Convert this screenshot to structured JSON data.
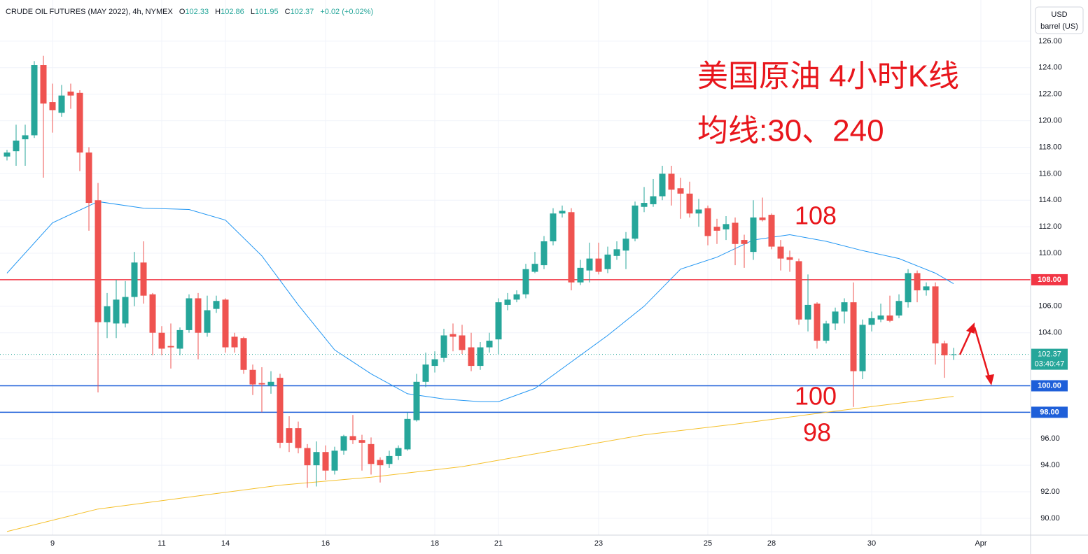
{
  "header": {
    "title": "CRUDE OIL FUTURES (MAY 2022), 4h, NYMEX",
    "ohlc": [
      {
        "label": "O",
        "value": "102.33"
      },
      {
        "label": "H",
        "value": "102.86"
      },
      {
        "label": "L",
        "value": "101.95"
      },
      {
        "label": "C",
        "value": "102.37"
      }
    ],
    "change": "+0.02 (+0.02%)",
    "currency": "USD",
    "unit": "barrel (US)"
  },
  "chart_data": {
    "type": "candlestick",
    "up_color": "#26a69a",
    "down_color": "#ef5350",
    "open": [
      117.3,
      117.7,
      118.6,
      118.9,
      124.2,
      121.4,
      120.6,
      122.2,
      122.1,
      117.6,
      114.0,
      104.8,
      104.7,
      104.7,
      106.7,
      109.3,
      106.9,
      104.0,
      103.0,
      102.8,
      104.2,
      106.6,
      104.0,
      105.8,
      106.5,
      103.7,
      103.6,
      101.2,
      100.2,
      100.0,
      100.6,
      96.8,
      96.8,
      95.3,
      94.0,
      95.0,
      93.6,
      95.1,
      96.2,
      95.9,
      95.6,
      94.4,
      94.1,
      94.7,
      95.2,
      97.4,
      100.3,
      101.5,
      102.1,
      103.9,
      103.8,
      102.9,
      101.5,
      102.9,
      103.5,
      106.1,
      106.5,
      106.9,
      108.6,
      109.1,
      110.9,
      113.0,
      113.1,
      107.8,
      108.7,
      109.6,
      108.8,
      109.8,
      110.2,
      111.1,
      113.5,
      113.7,
      114.3,
      116.0,
      114.9,
      114.5,
      113.0,
      113.4,
      112.0,
      111.8,
      112.3,
      111.0,
      110.1,
      112.7,
      112.9,
      110.5,
      109.7,
      109.4,
      105.0,
      106.2,
      103.4,
      104.7,
      105.6,
      106.3,
      101.1,
      104.6,
      105.0,
      105.3,
      105.3,
      106.3,
      108.5,
      107.2,
      107.5,
      103.2,
      102.33
    ],
    "high": [
      117.8,
      119.7,
      119.7,
      124.5,
      124.9,
      122.8,
      122.7,
      122.8,
      122.3,
      118.0,
      115.3,
      107.0,
      108.0,
      107.9,
      110.1,
      110.9,
      107.0,
      104.5,
      104.7,
      104.4,
      106.9,
      107.0,
      106.8,
      106.8,
      106.6,
      104.0,
      103.7,
      101.6,
      101.4,
      101.1,
      100.9,
      97.7,
      97.3,
      95.6,
      95.8,
      95.5,
      95.4,
      96.3,
      97.8,
      96.3,
      96.1,
      94.6,
      95.1,
      95.5,
      98.0,
      100.9,
      102.5,
      102.6,
      104.3,
      104.7,
      104.6,
      104.0,
      103.3,
      104.0,
      106.6,
      107.0,
      107.2,
      109.2,
      110.1,
      111.3,
      113.4,
      113.6,
      113.4,
      109.5,
      110.8,
      110.8,
      110.5,
      110.9,
      111.6,
      113.9,
      115.0,
      115.6,
      116.6,
      116.6,
      115.7,
      115.4,
      114.1,
      113.6,
      112.6,
      112.8,
      112.7,
      111.4,
      114.0,
      114.2,
      113.0,
      111.0,
      110.2,
      109.6,
      108.4,
      106.3,
      104.9,
      105.9,
      106.6,
      107.8,
      105.0,
      105.6,
      106.2,
      106.8,
      106.9,
      108.8,
      108.7,
      107.8,
      107.8,
      103.4,
      102.86
    ],
    "low": [
      117.0,
      116.6,
      116.6,
      118.7,
      115.7,
      119.1,
      120.3,
      120.9,
      116.2,
      111.7,
      99.5,
      103.6,
      103.6,
      104.4,
      106.0,
      106.2,
      102.3,
      102.3,
      101.3,
      102.3,
      104.0,
      102.0,
      103.7,
      105.5,
      102.5,
      102.5,
      100.9,
      99.3,
      98.0,
      99.4,
      95.3,
      95.0,
      94.9,
      92.3,
      92.4,
      92.9,
      93.3,
      94.8,
      95.6,
      93.6,
      93.3,
      92.7,
      93.8,
      94.4,
      95.1,
      97.3,
      99.9,
      101.0,
      101.8,
      102.6,
      102.4,
      101.1,
      101.2,
      102.5,
      102.4,
      105.7,
      106.3,
      106.6,
      108.5,
      108.8,
      110.6,
      112.7,
      107.2,
      107.6,
      107.8,
      108.4,
      108.5,
      109.5,
      108.8,
      110.9,
      113.1,
      113.5,
      114.0,
      113.6,
      112.6,
      112.7,
      112.0,
      110.6,
      110.7,
      111.0,
      109.1,
      108.9,
      109.5,
      112.4,
      110.3,
      108.7,
      108.6,
      104.6,
      104.1,
      102.8,
      103.2,
      104.2,
      104.7,
      98.4,
      100.5,
      104.1,
      104.8,
      104.8,
      105.1,
      105.9,
      106.3,
      106.8,
      101.6,
      100.6,
      101.95
    ],
    "close": [
      117.6,
      118.5,
      118.9,
      124.2,
      121.3,
      120.8,
      121.9,
      121.9,
      117.6,
      113.8,
      104.8,
      106.0,
      106.5,
      106.7,
      109.3,
      106.8,
      104.0,
      102.8,
      102.9,
      104.2,
      106.6,
      104.0,
      105.7,
      106.4,
      102.9,
      102.9,
      101.2,
      100.1,
      100.1,
      100.3,
      95.7,
      95.7,
      95.3,
      94.0,
      95.0,
      93.6,
      95.1,
      96.2,
      95.9,
      95.7,
      94.1,
      94.0,
      94.7,
      95.3,
      97.5,
      100.3,
      101.6,
      102.0,
      103.8,
      103.7,
      102.7,
      101.5,
      102.9,
      103.4,
      106.3,
      106.5,
      106.9,
      108.8,
      109.2,
      110.9,
      113.0,
      113.2,
      107.8,
      108.9,
      109.6,
      108.6,
      109.9,
      110.3,
      111.1,
      113.6,
      113.8,
      114.3,
      116.0,
      114.8,
      114.5,
      113.0,
      113.3,
      111.3,
      111.7,
      112.2,
      110.7,
      110.7,
      112.7,
      112.5,
      110.5,
      109.6,
      109.5,
      105.0,
      106.1,
      103.4,
      104.7,
      105.6,
      106.3,
      101.1,
      104.6,
      105.1,
      105.3,
      104.9,
      106.4,
      108.5,
      107.2,
      107.5,
      103.2,
      102.3,
      102.37
    ],
    "lines": [
      {
        "color": "#2196f3",
        "x": [
          0,
          5,
          10,
          15,
          20,
          24,
          28,
          32,
          36,
          40,
          44,
          48,
          52,
          54,
          58,
          62,
          66,
          70,
          74,
          78,
          82,
          86,
          90,
          94,
          98,
          102,
          104
        ],
        "values": [
          108.5,
          112.3,
          113.9,
          113.4,
          113.3,
          112.5,
          109.8,
          106.1,
          102.7,
          100.9,
          99.4,
          99.0,
          98.8,
          98.8,
          99.8,
          101.8,
          103.8,
          106.0,
          108.8,
          109.7,
          111.0,
          111.4,
          110.9,
          110.2,
          109.6,
          108.5,
          107.7
        ]
      },
      {
        "color": "#f5c02b",
        "x": [
          0,
          10,
          20,
          30,
          40,
          50,
          60,
          70,
          80,
          90,
          104
        ],
        "values": [
          89.0,
          90.7,
          91.6,
          92.5,
          93.1,
          93.9,
          95.1,
          96.3,
          97.1,
          98.0,
          99.2
        ]
      }
    ],
    "levels": [
      {
        "value": 108,
        "label": "108.00",
        "color": "#f23645"
      },
      {
        "value": 100,
        "label": "100.00",
        "color": "#1e5fd9"
      },
      {
        "value": 98,
        "label": "98.00",
        "color": "#1e5fd9"
      }
    ],
    "last_price": {
      "value": 102.37,
      "label": "102.37",
      "countdown": "03:40:47"
    },
    "xlim": [
      -0.77,
      112.46
    ],
    "xticks": [
      {
        "value": 5,
        "label": "9"
      },
      {
        "value": 17,
        "label": "11"
      },
      {
        "value": 24,
        "label": "14"
      },
      {
        "value": 35,
        "label": "16"
      },
      {
        "value": 47,
        "label": "18"
      },
      {
        "value": 54,
        "label": "21"
      },
      {
        "value": 65,
        "label": "23"
      },
      {
        "value": 77,
        "label": "25"
      },
      {
        "value": 84,
        "label": "28"
      },
      {
        "value": 95,
        "label": "30"
      },
      {
        "value": 107,
        "label": "Apr"
      }
    ],
    "ylim": [
      88.73,
      129.11
    ],
    "yticks": [
      {
        "value": 90,
        "label": "90.00"
      },
      {
        "value": 92,
        "label": "92.00"
      },
      {
        "value": 94,
        "label": "94.00"
      },
      {
        "value": 96,
        "label": "96.00"
      },
      {
        "value": 98,
        "label": "98.00"
      },
      {
        "value": 100,
        "label": "100.00"
      },
      {
        "value": 102,
        "label": "102.00"
      },
      {
        "value": 104,
        "label": "104.00"
      },
      {
        "value": 106,
        "label": "106.00"
      },
      {
        "value": 108,
        "label": "108.00"
      },
      {
        "value": 110,
        "label": "110.00"
      },
      {
        "value": 112,
        "label": "112.00"
      },
      {
        "value": 114,
        "label": "114.00"
      },
      {
        "value": 116,
        "label": "116.00"
      },
      {
        "value": 118,
        "label": "118.00"
      },
      {
        "value": 120,
        "label": "120.00"
      },
      {
        "value": 122,
        "label": "122.00"
      },
      {
        "value": 124,
        "label": "124.00"
      },
      {
        "value": 126,
        "label": "126.00"
      }
    ],
    "grid": true,
    "annotations": [
      "美国原油 4小时K线",
      "均线:30、240",
      "108",
      "100",
      "98"
    ]
  }
}
